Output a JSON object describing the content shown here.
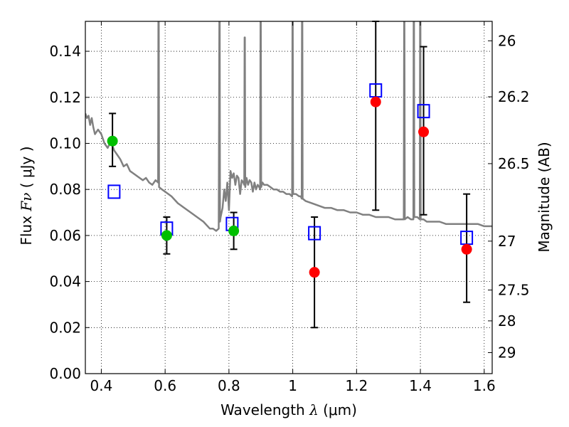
{
  "chart_data": {
    "type": "scatter",
    "xlabel": {
      "prefix": "Wavelength ",
      "symbol": "λ",
      "unit": " (μm)"
    },
    "ylabel": {
      "prefix": "Flux ",
      "symbol": "Fν",
      "unit": " ( μJy )"
    },
    "y2label": "Magnitude (AB)",
    "xlim": [
      0.35,
      1.625
    ],
    "ylim": [
      0.0,
      0.153
    ],
    "grid": true,
    "x_ticks": [
      0.4,
      0.6,
      0.8,
      1.0,
      1.2,
      1.4,
      1.6
    ],
    "x_tick_labels": [
      "0.4",
      "0.6",
      "0.8",
      "1",
      "1.2",
      "1.4",
      "1.6"
    ],
    "y_ticks": [
      0.0,
      0.02,
      0.04,
      0.06,
      0.08,
      0.1,
      0.12,
      0.14
    ],
    "y_tick_labels": [
      "0.00",
      "0.02",
      "0.04",
      "0.06",
      "0.08",
      "0.10",
      "0.12",
      "0.14"
    ],
    "y2_ticks": [
      {
        "label": "26",
        "mag": 26.0
      },
      {
        "label": "26.2",
        "mag": 26.2
      },
      {
        "label": "26.5",
        "mag": 26.5
      },
      {
        "label": "27",
        "mag": 27.0
      },
      {
        "label": "27.5",
        "mag": 27.5
      },
      {
        "label": "28",
        "mag": 28.0
      },
      {
        "label": "29",
        "mag": 29.0
      }
    ],
    "model_spectrum": {
      "color": "#808080",
      "x": [
        0.35,
        0.355,
        0.36,
        0.365,
        0.37,
        0.375,
        0.38,
        0.39,
        0.4,
        0.41,
        0.42,
        0.43,
        0.44,
        0.45,
        0.46,
        0.47,
        0.48,
        0.49,
        0.5,
        0.51,
        0.52,
        0.53,
        0.54,
        0.55,
        0.56,
        0.57,
        0.578,
        0.579,
        0.58,
        0.581,
        0.59,
        0.6,
        0.62,
        0.64,
        0.66,
        0.68,
        0.7,
        0.72,
        0.74,
        0.75,
        0.76,
        0.768,
        0.77,
        0.771,
        0.772,
        0.774,
        0.78,
        0.785,
        0.79,
        0.795,
        0.8,
        0.805,
        0.81,
        0.815,
        0.82,
        0.825,
        0.83,
        0.835,
        0.84,
        0.845,
        0.848,
        0.849,
        0.85,
        0.851,
        0.855,
        0.86,
        0.865,
        0.87,
        0.875,
        0.88,
        0.885,
        0.89,
        0.895,
        0.898,
        0.899,
        0.9,
        0.901,
        0.905,
        0.91,
        0.92,
        0.93,
        0.94,
        0.95,
        0.96,
        0.97,
        0.98,
        0.99,
        0.998,
        0.999,
        1.0,
        1.001,
        1.01,
        1.02,
        1.025,
        1.028,
        1.029,
        1.03,
        1.031,
        1.04,
        1.06,
        1.08,
        1.1,
        1.12,
        1.14,
        1.16,
        1.18,
        1.2,
        1.22,
        1.24,
        1.26,
        1.28,
        1.3,
        1.32,
        1.34,
        1.348,
        1.349,
        1.35,
        1.351,
        1.36,
        1.37,
        1.378,
        1.379,
        1.38,
        1.381,
        1.39,
        1.398,
        1.399,
        1.4,
        1.401,
        1.41,
        1.42,
        1.44,
        1.46,
        1.48,
        1.5,
        1.52,
        1.54,
        1.56,
        1.58,
        1.6,
        1.625
      ],
      "y": [
        0.113,
        0.111,
        0.112,
        0.108,
        0.111,
        0.107,
        0.104,
        0.106,
        0.104,
        0.1,
        0.098,
        0.101,
        0.097,
        0.095,
        0.093,
        0.09,
        0.091,
        0.088,
        0.087,
        0.086,
        0.085,
        0.084,
        0.085,
        0.083,
        0.082,
        0.084,
        0.083,
        0.153,
        0.153,
        0.081,
        0.08,
        0.079,
        0.077,
        0.074,
        0.072,
        0.07,
        0.068,
        0.066,
        0.063,
        0.063,
        0.062,
        0.063,
        0.153,
        0.153,
        0.066,
        0.068,
        0.072,
        0.08,
        0.075,
        0.083,
        0.071,
        0.088,
        0.085,
        0.087,
        0.082,
        0.086,
        0.085,
        0.078,
        0.084,
        0.083,
        0.082,
        0.146,
        0.146,
        0.081,
        0.085,
        0.082,
        0.084,
        0.083,
        0.079,
        0.083,
        0.08,
        0.082,
        0.081,
        0.08,
        0.153,
        0.153,
        0.081,
        0.083,
        0.082,
        0.082,
        0.081,
        0.08,
        0.08,
        0.079,
        0.079,
        0.078,
        0.078,
        0.077,
        0.153,
        0.153,
        0.078,
        0.078,
        0.077,
        0.077,
        0.076,
        0.153,
        0.153,
        0.076,
        0.075,
        0.074,
        0.073,
        0.072,
        0.072,
        0.071,
        0.071,
        0.07,
        0.07,
        0.069,
        0.069,
        0.068,
        0.068,
        0.068,
        0.067,
        0.067,
        0.067,
        0.153,
        0.153,
        0.067,
        0.068,
        0.067,
        0.067,
        0.153,
        0.153,
        0.068,
        0.068,
        0.067,
        0.153,
        0.153,
        0.067,
        0.067,
        0.066,
        0.066,
        0.066,
        0.065,
        0.065,
        0.065,
        0.065,
        0.065,
        0.065,
        0.064,
        0.064
      ]
    },
    "error_bars": [
      {
        "x": 0.435,
        "lo": 0.09,
        "hi": 0.113
      },
      {
        "x": 0.605,
        "lo": 0.052,
        "hi": 0.068
      },
      {
        "x": 0.815,
        "lo": 0.054,
        "hi": 0.07
      },
      {
        "x": 1.068,
        "lo": 0.02,
        "hi": 0.068
      },
      {
        "x": 1.26,
        "lo": 0.071,
        "hi": 0.153
      },
      {
        "x": 1.41,
        "lo": 0.069,
        "hi": 0.142
      },
      {
        "x": 1.545,
        "lo": 0.031,
        "hi": 0.078
      }
    ],
    "observed_green": {
      "color": "#00bf00",
      "x": [
        0.435,
        0.605,
        0.815
      ],
      "y": [
        0.101,
        0.06,
        0.062
      ]
    },
    "observed_red": {
      "color": "#ff0000",
      "x": [
        1.068,
        1.26,
        1.41,
        1.545
      ],
      "y": [
        0.044,
        0.118,
        0.105,
        0.054
      ]
    },
    "model_squares": {
      "color": "#0000ff",
      "x": [
        0.44,
        0.605,
        0.81,
        1.068,
        1.26,
        1.41,
        1.545
      ],
      "y": [
        0.079,
        0.063,
        0.065,
        0.061,
        0.123,
        0.114,
        0.059
      ]
    }
  }
}
